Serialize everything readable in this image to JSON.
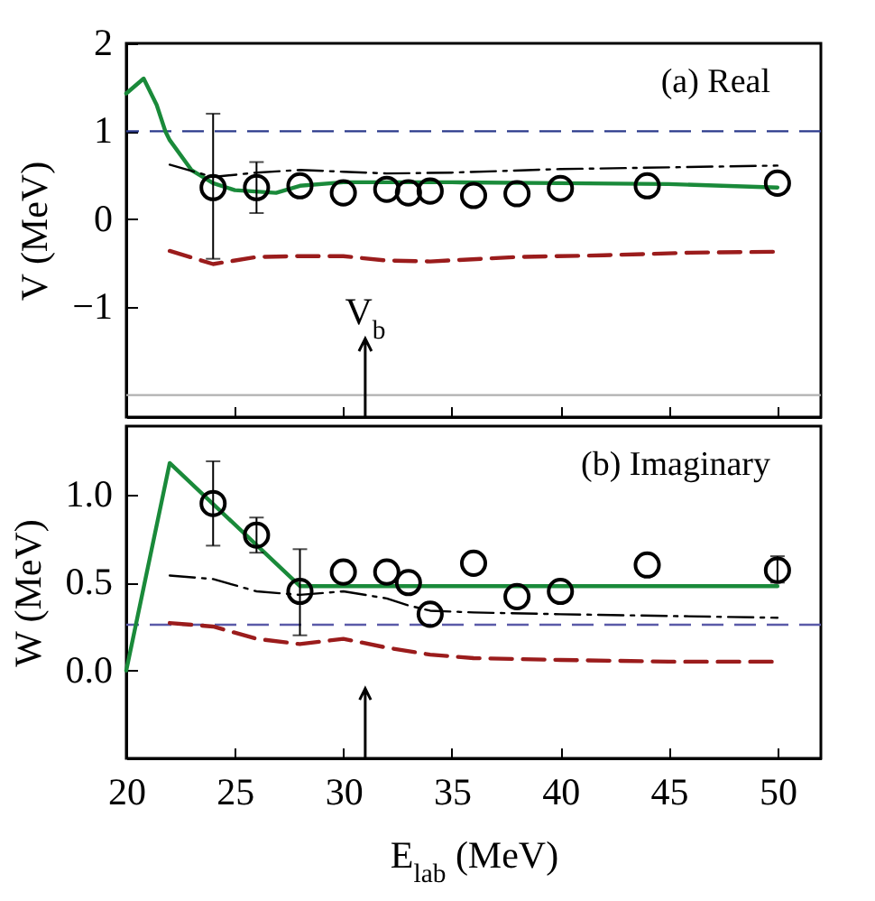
{
  "chart_data": [
    {
      "type": "line",
      "ylabel": "V (MeV)",
      "xlim": [
        20,
        52
      ],
      "ylim": [
        -2.25,
        2
      ],
      "xticks": [
        20,
        25,
        30,
        35,
        40,
        45,
        50
      ],
      "yticks": [
        -1,
        0,
        1,
        2
      ],
      "tick_labels": "y",
      "annotations": [
        "(a) Real",
        "V$_{b}$"
      ],
      "ref_lines": [
        {
          "axis": "y",
          "value": 1,
          "color": "#2b3a8c",
          "line_style": "dashed"
        },
        {
          "axis": "y",
          "value": -2,
          "color": "#b0b0b0",
          "line_style": "solid"
        }
      ],
      "series": [
        {
          "type": "line",
          "color": "#1a8a3a",
          "line_style": "solid",
          "x": [
            20,
            20.8,
            21.4,
            21.8,
            22,
            23,
            24,
            25,
            26.9,
            28,
            30,
            35,
            40,
            45,
            50
          ],
          "values": [
            1.43,
            1.6,
            1.3,
            1.0,
            0.9,
            0.56,
            0.41,
            0.33,
            0.3,
            0.38,
            0.42,
            0.42,
            0.41,
            0.4,
            0.36
          ]
        },
        {
          "type": "line",
          "color": "#000000",
          "line_style": "dashdot",
          "x": [
            22,
            24,
            26,
            28,
            30,
            32,
            35,
            40,
            45,
            50
          ],
          "values": [
            0.62,
            0.48,
            0.53,
            0.56,
            0.54,
            0.52,
            0.53,
            0.57,
            0.59,
            0.61
          ]
        },
        {
          "type": "line",
          "color": "#9b1c1c",
          "line_style": "dashed",
          "x": [
            22,
            24,
            26,
            28,
            30,
            32,
            34,
            38,
            42,
            46,
            50
          ],
          "values": [
            -0.36,
            -0.51,
            -0.43,
            -0.42,
            -0.42,
            -0.47,
            -0.48,
            -0.43,
            -0.41,
            -0.38,
            -0.37
          ]
        },
        {
          "type": "scatter",
          "marker": "circle",
          "color": "#000000",
          "x": [
            24,
            26,
            28,
            30,
            32,
            33,
            34,
            36,
            38,
            40,
            44,
            50
          ],
          "values": [
            0.36,
            0.36,
            0.38,
            0.3,
            0.34,
            0.3,
            0.32,
            0.27,
            0.29,
            0.35,
            0.38,
            0.41
          ],
          "errors": [
            [
              -0.45,
              1.2
            ],
            [
              0.07,
              0.65
            ],
            null,
            null,
            null,
            null,
            null,
            null,
            null,
            null,
            null,
            null
          ]
        }
      ]
    },
    {
      "type": "line",
      "xlabel": "E$_{lab}$ (MeV)",
      "ylabel": "W (MeV)",
      "xlim": [
        20,
        52
      ],
      "ylim": [
        -0.5,
        1.39
      ],
      "xticks": [
        20,
        25,
        30,
        35,
        40,
        45,
        50
      ],
      "yticks": [
        {
          "value": 0,
          "label": "0.0"
        },
        {
          "value": 0.5,
          "label": "0.5"
        },
        {
          "value": 1,
          "label": "1.0"
        }
      ],
      "annotations": [
        "(b) Imaginary"
      ],
      "ref_lines": [
        {
          "axis": "y",
          "value": 0.26,
          "color": "#5a5aa8",
          "line_style": "dashed"
        }
      ],
      "series": [
        {
          "type": "line",
          "color": "#1a8a3a",
          "line_style": "solid",
          "x": [
            20,
            22,
            28,
            50
          ],
          "values": [
            0,
            1.18,
            0.48,
            0.48
          ]
        },
        {
          "type": "line",
          "color": "#000000",
          "line_style": "dashdot",
          "x": [
            22,
            24,
            26,
            28,
            30,
            32,
            33,
            34,
            36,
            40,
            45,
            50
          ],
          "values": [
            0.54,
            0.52,
            0.45,
            0.43,
            0.45,
            0.41,
            0.37,
            0.34,
            0.33,
            0.32,
            0.31,
            0.3
          ]
        },
        {
          "type": "line",
          "color": "#9b1c1c",
          "line_style": "dashed",
          "x": [
            22,
            24,
            26,
            28,
            30,
            32,
            34,
            36,
            40,
            45,
            50
          ],
          "values": [
            0.27,
            0.25,
            0.18,
            0.15,
            0.18,
            0.13,
            0.09,
            0.07,
            0.06,
            0.05,
            0.05
          ]
        },
        {
          "type": "scatter",
          "marker": "circle",
          "color": "#000000",
          "x": [
            24,
            26,
            28,
            30,
            32,
            33,
            34,
            36,
            38,
            40,
            44,
            50
          ],
          "values": [
            0.95,
            0.77,
            0.45,
            0.56,
            0.56,
            0.5,
            0.32,
            0.61,
            0.42,
            0.45,
            0.6,
            0.57
          ],
          "errors": [
            [
              0.71,
              1.19
            ],
            [
              0.67,
              0.87
            ],
            [
              0.2,
              0.69
            ],
            null,
            null,
            null,
            null,
            null,
            null,
            null,
            null,
            [
              0.5,
              0.65
            ]
          ]
        }
      ]
    }
  ]
}
